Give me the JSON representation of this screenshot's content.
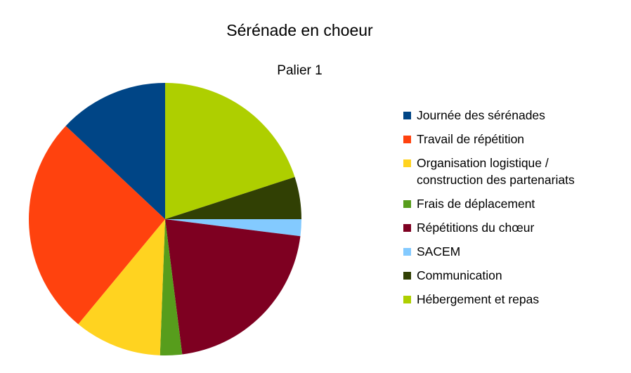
{
  "chart_data": {
    "type": "pie",
    "title": "Sérénade en choeur",
    "subtitle": "Palier 1",
    "legend_position": "right",
    "slices": [
      {
        "label": "Hébergement et repas",
        "value": 20.0,
        "color": "#aecf00"
      },
      {
        "label": "Communication",
        "value": 5.0,
        "color": "#314004"
      },
      {
        "label": "SACEM",
        "value": 2.0,
        "color": "#83caff"
      },
      {
        "label": "Répétitions du chœur",
        "value": 21.0,
        "color": "#7e0021"
      },
      {
        "label": "Frais de déplacement",
        "value": 2.6,
        "color": "#579d1c"
      },
      {
        "label": "Organisation logistique / construction des partenariats",
        "value": 10.4,
        "color": "#ffd320"
      },
      {
        "label": "Travail de répétition",
        "value": 26.0,
        "color": "#ff420e"
      },
      {
        "label": "Journée des sérénades",
        "value": 13.0,
        "color": "#004586"
      }
    ],
    "legend": [
      {
        "label": "Journée des sérénades",
        "color": "#004586"
      },
      {
        "label": "Travail de répétition",
        "color": "#ff420e"
      },
      {
        "label_lines": [
          "Organisation logistique /",
          "construction des partenariats"
        ],
        "color": "#ffd320"
      },
      {
        "label": "Frais de déplacement",
        "color": "#579d1c"
      },
      {
        "label": "Répétitions du chœur",
        "color": "#7e0021"
      },
      {
        "label": "SACEM",
        "color": "#83caff"
      },
      {
        "label": "Communication",
        "color": "#314004"
      },
      {
        "label": "Hébergement et repas",
        "color": "#aecf00"
      }
    ]
  }
}
